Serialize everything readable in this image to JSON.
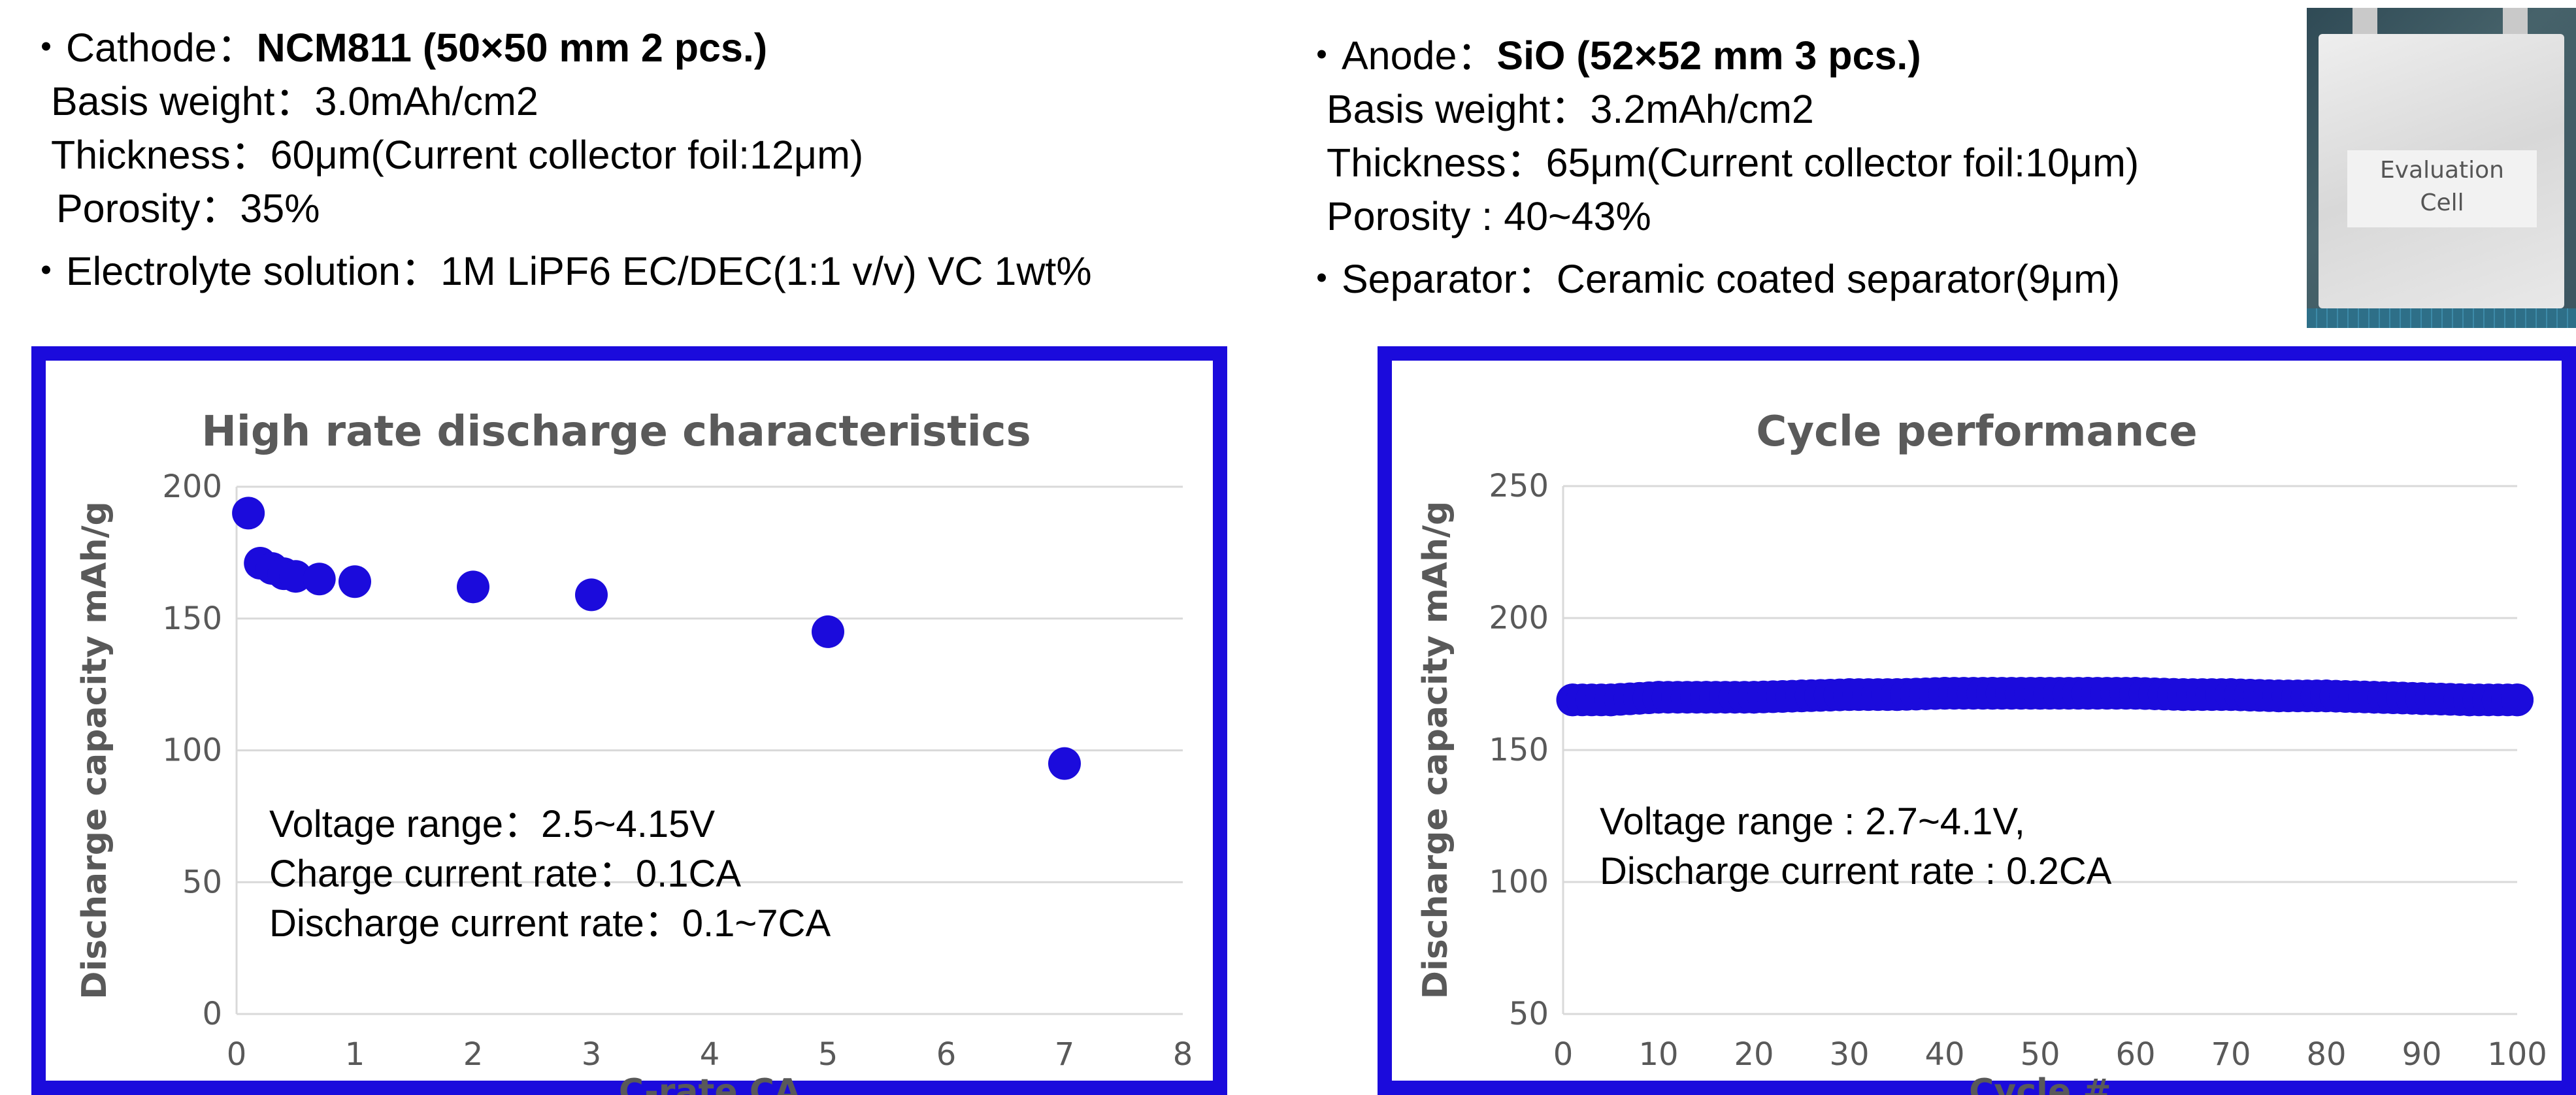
{
  "specs": {
    "left": {
      "cathode_prefix": "・Cathode：",
      "cathode_value": "NCM811 (50×50 mm 2 pcs.)",
      "basis_weight": "Basis weight：3.0mAh/cm2",
      "thickness": "Thickness：60μm(Current collector foil:12μm)",
      "porosity": "Porosity：35%",
      "electrolyte": "・Electrolyte solution：1M LiPF6 EC/DEC(1:1 v/v) VC 1wt%"
    },
    "right": {
      "anode_prefix": "・Anode：",
      "anode_value": "SiO (52×52 mm 3 pcs.)",
      "basis_weight": "Basis weight：3.2mAh/cm2",
      "thickness": "Thickness：65μm(Current collector foil:10μm)",
      "porosity": "Porosity : 40~43%",
      "separator": "・Separator：Ceramic coated separator(9μm)"
    }
  },
  "photo": {
    "label_line1": "Evaluation",
    "label_line2": "Cell"
  },
  "colors": {
    "frame": "#1b0bdc",
    "marker": "#1b0bdc",
    "grid": "#d9d9d9",
    "title": "#5a5a5a",
    "tick": "#595959"
  },
  "chart_data": [
    {
      "type": "scatter",
      "title": "High rate discharge characteristics",
      "xlabel": "C-rate CA",
      "ylabel": "Discharge capacity mAh/g",
      "xlim": [
        0,
        8
      ],
      "ylim": [
        0,
        200
      ],
      "xticks": [
        "0",
        "1",
        "2",
        "3",
        "4",
        "5",
        "6",
        "7",
        "8"
      ],
      "yticks": [
        "0",
        "50",
        "100",
        "150",
        "200"
      ],
      "grid": "horizontal",
      "legend": "none",
      "points": [
        {
          "x": 0.1,
          "y": 190
        },
        {
          "x": 0.2,
          "y": 171
        },
        {
          "x": 0.3,
          "y": 169
        },
        {
          "x": 0.4,
          "y": 167
        },
        {
          "x": 0.5,
          "y": 166
        },
        {
          "x": 0.7,
          "y": 165
        },
        {
          "x": 1.0,
          "y": 164
        },
        {
          "x": 2.0,
          "y": 162
        },
        {
          "x": 3.0,
          "y": 159
        },
        {
          "x": 5.0,
          "y": 145
        },
        {
          "x": 7.0,
          "y": 95
        }
      ],
      "annotations": [
        "Voltage range：2.5~4.15V",
        "Charge current rate：0.1CA",
        "Discharge current rate：0.1~7CA"
      ]
    },
    {
      "type": "scatter",
      "title": "Cycle performance",
      "xlabel": "Cycle #",
      "ylabel": "Discharge capacity mAh/g",
      "xlim": [
        0,
        100
      ],
      "ylim": [
        50,
        250
      ],
      "xticks": [
        "0",
        "10",
        "20",
        "30",
        "40",
        "50",
        "60",
        "70",
        "80",
        "90",
        "100"
      ],
      "yticks": [
        "50",
        "100",
        "150",
        "200",
        "250"
      ],
      "grid": "horizontal",
      "legend": "none",
      "points": [
        {
          "x": 1,
          "y": 169
        },
        {
          "x": 5,
          "y": 169
        },
        {
          "x": 10,
          "y": 170
        },
        {
          "x": 15,
          "y": 170
        },
        {
          "x": 20,
          "y": 170
        },
        {
          "x": 25,
          "y": 170.5
        },
        {
          "x": 30,
          "y": 171
        },
        {
          "x": 35,
          "y": 171
        },
        {
          "x": 40,
          "y": 171.5
        },
        {
          "x": 45,
          "y": 171.5
        },
        {
          "x": 50,
          "y": 171.5
        },
        {
          "x": 55,
          "y": 171.5
        },
        {
          "x": 60,
          "y": 171.5
        },
        {
          "x": 65,
          "y": 171
        },
        {
          "x": 70,
          "y": 171
        },
        {
          "x": 75,
          "y": 170.5
        },
        {
          "x": 80,
          "y": 170.5
        },
        {
          "x": 85,
          "y": 170
        },
        {
          "x": 90,
          "y": 169.5
        },
        {
          "x": 95,
          "y": 169
        },
        {
          "x": 100,
          "y": 169
        }
      ],
      "annotations": [
        "Voltage range : 2.7~4.1V,",
        "Discharge current rate : 0.2CA"
      ]
    }
  ]
}
